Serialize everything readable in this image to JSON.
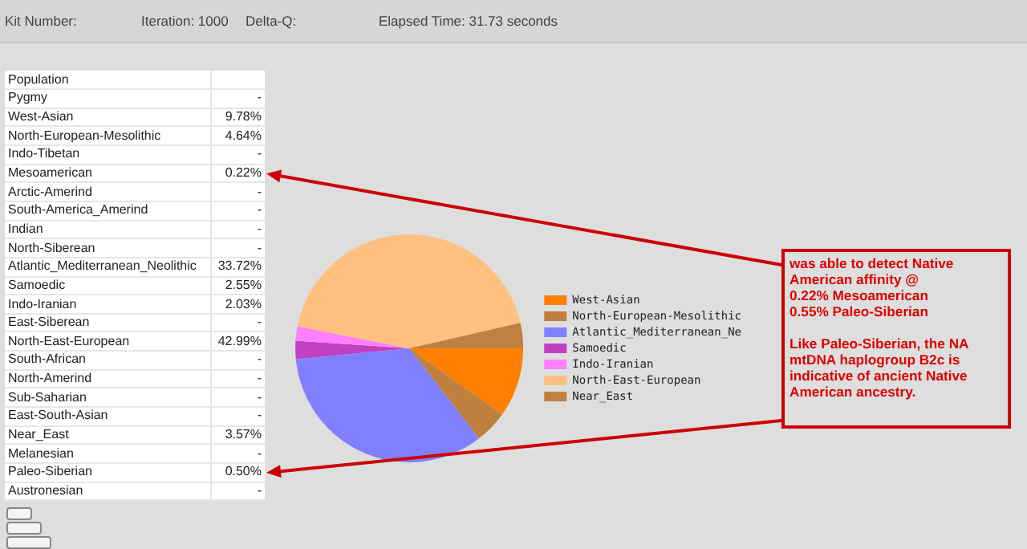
{
  "chart_data": [
    {
      "type": "pie",
      "legend": "right",
      "categories": [
        "West-Asian",
        "North-European-Mesolithic",
        "Atlantic_Mediterranean_Ne",
        "Samoedic",
        "Indo-Iranian",
        "North-East-European",
        "Near_East"
      ],
      "values": [
        9.78,
        4.64,
        33.72,
        2.55,
        2.03,
        42.99,
        3.57
      ],
      "colors": [
        "#ff8000",
        "#bf7f3f",
        "#8080ff",
        "#c040c0",
        "#ff80ff",
        "#ffc080",
        "#c08040"
      ],
      "annotations": [
        "Kit Number:",
        "Iteration: 1000",
        "Delta-Q:",
        "Elapsed Time: 31.73 seconds",
        "was able to detect Native American affinity @\n0.22% Mesoamerican\n0.55% Paleo-Siberian",
        "Like Paleo-Siberian, the NA mtDNA haplogroup B2c is indicative of ancient Native American ancestry."
      ]
    },
    {
      "type": "other",
      "title": "Population",
      "categories": [
        "Pygmy",
        "West-Asian",
        "North-European-Mesolithic",
        "Indo-Tibetan",
        "Mesoamerican",
        "Arctic-Amerind",
        "South-America_Amerind",
        "Indian",
        "North-Siberean",
        "Atlantic_Mediterranean_Neolithic",
        "Samoedic",
        "Indo-Iranian",
        "East-Siberean",
        "North-East-European",
        "South-African",
        "North-Amerind",
        "Sub-Saharian",
        "East-South-Asian",
        "Near_East",
        "Melanesian",
        "Paleo-Siberian",
        "Austronesian"
      ],
      "value_labels": [
        "-",
        "9.78%",
        "4.64%",
        "-",
        "0.22%",
        "-",
        "-",
        "-",
        "-",
        "33.72%",
        "2.55%",
        "2.03%",
        "-",
        "42.99%",
        "-",
        "-",
        "-",
        "-",
        "3.57%",
        "-",
        "0.50%",
        "-"
      ]
    }
  ]
}
